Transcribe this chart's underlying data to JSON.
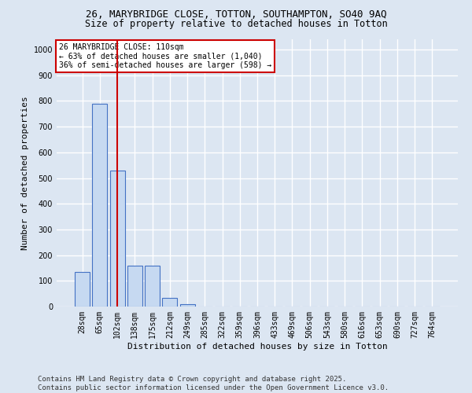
{
  "title_line1": "26, MARYBRIDGE CLOSE, TOTTON, SOUTHAMPTON, SO40 9AQ",
  "title_line2": "Size of property relative to detached houses in Totton",
  "xlabel": "Distribution of detached houses by size in Totton",
  "ylabel": "Number of detached properties",
  "categories": [
    "28sqm",
    "65sqm",
    "102sqm",
    "138sqm",
    "175sqm",
    "212sqm",
    "249sqm",
    "285sqm",
    "322sqm",
    "359sqm",
    "396sqm",
    "433sqm",
    "469sqm",
    "506sqm",
    "543sqm",
    "580sqm",
    "616sqm",
    "653sqm",
    "690sqm",
    "727sqm",
    "764sqm"
  ],
  "values": [
    135,
    790,
    530,
    160,
    160,
    35,
    10,
    0,
    0,
    0,
    0,
    0,
    0,
    0,
    0,
    0,
    0,
    0,
    0,
    0,
    0
  ],
  "bar_color": "#c6d9f1",
  "bar_edgecolor": "#4472c4",
  "redline_index": 2,
  "redline_color": "#cc0000",
  "ylim": [
    0,
    1040
  ],
  "yticks": [
    0,
    100,
    200,
    300,
    400,
    500,
    600,
    700,
    800,
    900,
    1000
  ],
  "annotation_text": "26 MARYBRIDGE CLOSE: 110sqm\n← 63% of detached houses are smaller (1,040)\n36% of semi-detached houses are larger (598) →",
  "annotation_box_color": "#ffffff",
  "annotation_box_edgecolor": "#cc0000",
  "footnote_line1": "Contains HM Land Registry data © Crown copyright and database right 2025.",
  "footnote_line2": "Contains public sector information licensed under the Open Government Licence v3.0.",
  "background_color": "#dce6f2",
  "plot_background_color": "#dce6f2",
  "grid_color": "#ffffff",
  "title_fontsize": 9,
  "subtitle_fontsize": 8.5,
  "axis_label_fontsize": 8,
  "tick_fontsize": 7,
  "annotation_fontsize": 7,
  "footnote_fontsize": 6.5
}
